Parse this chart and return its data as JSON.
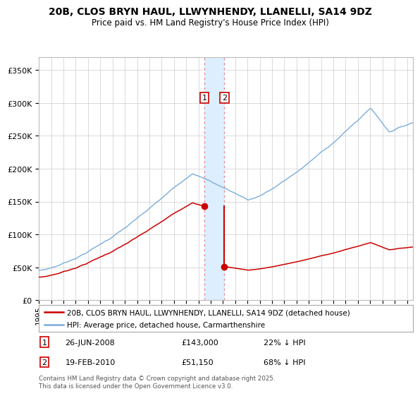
{
  "title": "20B, CLOS BRYN HAUL, LLWYNHENDY, LLANELLI, SA14 9DZ",
  "subtitle": "Price paid vs. HM Land Registry's House Price Index (HPI)",
  "ylabel_ticks": [
    "£0",
    "£50K",
    "£100K",
    "£150K",
    "£200K",
    "£250K",
    "£300K",
    "£350K"
  ],
  "ytick_values": [
    0,
    50000,
    100000,
    150000,
    200000,
    250000,
    300000,
    350000
  ],
  "ylim": [
    0,
    370000
  ],
  "xlim_start": 1995.0,
  "xlim_end": 2025.5,
  "legend_line1": "20B, CLOS BRYN HAUL, LLWYNHENDY, LLANELLI, SA14 9DZ (detached house)",
  "legend_line2": "HPI: Average price, detached house, Carmarthenshire",
  "line1_color": "#cc0000",
  "line2_color": "#7aacdc",
  "marker1_date": 2008.48,
  "marker1_value": 143000,
  "marker2_date": 2010.12,
  "marker2_value": 51150,
  "shade_color": "#ddeeff",
  "vline_color": "#ee8888",
  "footer": "Contains HM Land Registry data © Crown copyright and database right 2025.\nThis data is licensed under the Open Government Licence v3.0.",
  "transaction1_text": "26-JUN-2008",
  "transaction1_price": "£143,000",
  "transaction1_hpi": "22% ↓ HPI",
  "transaction2_text": "19-FEB-2010",
  "transaction2_price": "£51,150",
  "transaction2_hpi": "68% ↓ HPI",
  "background_color": "#ffffff",
  "grid_color": "#cccccc"
}
